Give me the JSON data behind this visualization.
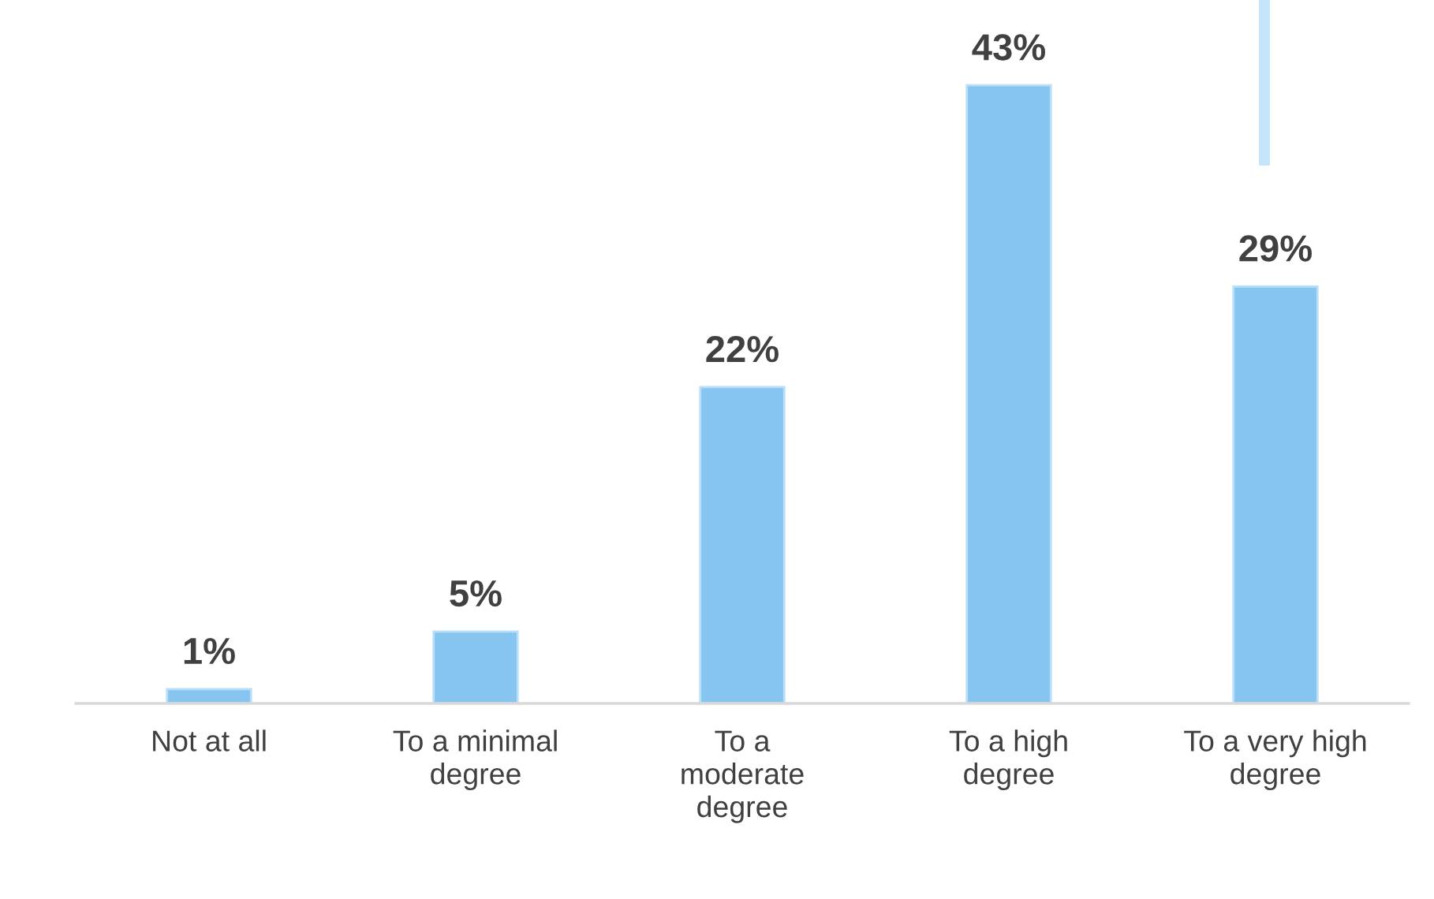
{
  "chart_data": {
    "type": "bar",
    "categories": [
      "Not at all",
      "To a minimal\ndegree",
      "To a\nmoderate\ndegree",
      "To a high\ndegree",
      "To a very high\ndegree"
    ],
    "values": [
      1,
      5,
      22,
      43,
      29
    ],
    "value_labels": [
      "1%",
      "5%",
      "22%",
      "43%",
      "29%"
    ],
    "color": "#85c5ef",
    "grid": false,
    "legend": false
  }
}
